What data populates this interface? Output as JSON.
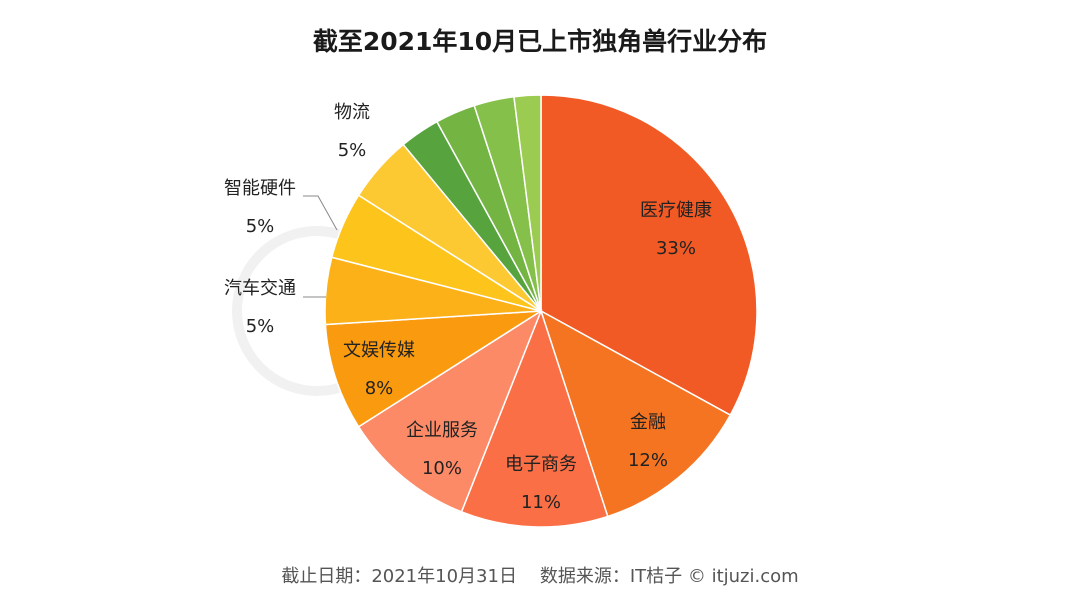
{
  "chart_data": {
    "type": "pie",
    "title": "截至2021年10月已上市独角兽行业分布",
    "slices": [
      {
        "label": "医疗健康",
        "pct_label": "33%",
        "value": 33,
        "color": "#f15a24",
        "show_label": true
      },
      {
        "label": "金融",
        "pct_label": "12%",
        "value": 12,
        "color": "#f47421",
        "show_label": true
      },
      {
        "label": "电子商务",
        "pct_label": "11%",
        "value": 11,
        "color": "#fa6f45",
        "show_label": true
      },
      {
        "label": "企业服务",
        "pct_label": "10%",
        "value": 10,
        "color": "#fc8a66",
        "show_label": true
      },
      {
        "label": "文娱传媒",
        "pct_label": "8%",
        "value": 8,
        "color": "#f99a0f",
        "show_label": true
      },
      {
        "label": "汽车交通",
        "pct_label": "5%",
        "value": 5,
        "color": "#fbb117",
        "show_label": true
      },
      {
        "label": "智能硬件",
        "pct_label": "5%",
        "value": 5,
        "color": "#fdc51c",
        "show_label": true
      },
      {
        "label": "物流",
        "pct_label": "5%",
        "value": 5,
        "color": "#fdc933",
        "show_label": true
      },
      {
        "label": "",
        "pct_label": "",
        "value": 3,
        "color": "#57a33d",
        "show_label": false
      },
      {
        "label": "",
        "pct_label": "",
        "value": 3,
        "color": "#73b443",
        "show_label": false
      },
      {
        "label": "",
        "pct_label": "",
        "value": 3,
        "color": "#85c04a",
        "show_label": false
      },
      {
        "label": "",
        "pct_label": "",
        "value": 2,
        "color": "#9ccb52",
        "show_label": false
      }
    ]
  },
  "footer": {
    "text": "截止日期：2021年10月31日    数据来源：IT桔子 © itjuzi.com"
  },
  "watermark": "IT桔子"
}
